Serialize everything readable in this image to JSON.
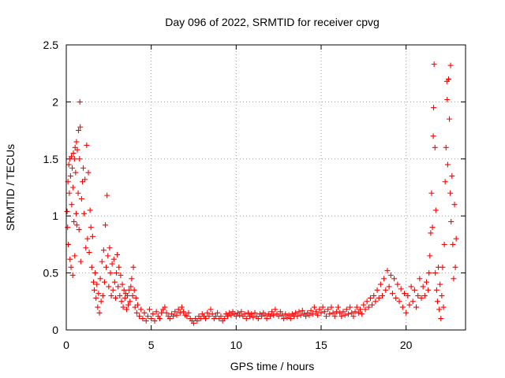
{
  "chart_data": {
    "type": "scatter",
    "title": "Day 096 of 2022, SRMTID for receiver cpvg",
    "xlabel": "GPS time / hours",
    "ylabel": "SRMTID / TECUs",
    "xlim": [
      0,
      23.5
    ],
    "ylim": [
      0,
      2.5
    ],
    "xticks": [
      0,
      5,
      10,
      15,
      20
    ],
    "xtick_labels": [
      "0",
      "5",
      "10",
      "15",
      "20"
    ],
    "yticks": [
      0,
      0.5,
      1,
      1.5,
      2,
      2.5
    ],
    "ytick_labels": [
      "0",
      "0.5",
      "1",
      "1.5",
      "2",
      "2.5"
    ],
    "grid": true,
    "marker": "+",
    "color": "#ff0000",
    "series": [
      {
        "name": "SRMTID",
        "points": [
          [
            0.05,
            1.04
          ],
          [
            0.08,
            0.9
          ],
          [
            0.1,
            1.3
          ],
          [
            0.12,
            0.75
          ],
          [
            0.15,
            1.45
          ],
          [
            0.18,
            1.2
          ],
          [
            0.2,
            1.5
          ],
          [
            0.22,
            0.62
          ],
          [
            0.25,
            1.35
          ],
          [
            0.28,
            0.55
          ],
          [
            0.3,
            1.52
          ],
          [
            0.32,
            1.1
          ],
          [
            0.35,
            1.42
          ],
          [
            0.38,
            0.48
          ],
          [
            0.4,
            1.25
          ],
          [
            0.42,
            1.55
          ],
          [
            0.45,
            0.95
          ],
          [
            0.48,
            1.5
          ],
          [
            0.5,
            0.65
          ],
          [
            0.52,
            1.6
          ],
          [
            0.55,
            1.38
          ],
          [
            0.58,
            1.02
          ],
          [
            0.6,
            1.65
          ],
          [
            0.62,
            0.92
          ],
          [
            0.65,
            1.58
          ],
          [
            0.7,
            1.2
          ],
          [
            0.72,
            1.75
          ],
          [
            0.75,
            0.88
          ],
          [
            0.78,
            1.5
          ],
          [
            0.8,
            2.0
          ],
          [
            0.82,
            1.78
          ],
          [
            0.85,
            0.6
          ],
          [
            0.9,
            1.15
          ],
          [
            0.95,
            1.3
          ],
          [
            1.0,
            1.42
          ],
          [
            1.05,
            1.02
          ],
          [
            1.1,
            1.32
          ],
          [
            1.15,
            0.72
          ],
          [
            1.2,
            1.62
          ],
          [
            1.25,
            0.8
          ],
          [
            1.3,
            1.38
          ],
          [
            1.35,
            0.68
          ],
          [
            1.4,
            1.05
          ],
          [
            1.45,
            0.9
          ],
          [
            1.5,
            0.55
          ],
          [
            1.55,
            0.82
          ],
          [
            1.6,
            0.42
          ],
          [
            1.65,
            0.35
          ],
          [
            1.7,
            0.5
          ],
          [
            1.75,
            0.28
          ],
          [
            1.8,
            0.4
          ],
          [
            1.85,
            0.2
          ],
          [
            1.9,
            0.32
          ],
          [
            1.95,
            0.15
          ],
          [
            2.0,
            0.45
          ],
          [
            2.05,
            0.25
          ],
          [
            2.1,
            0.6
          ],
          [
            2.15,
            0.3
          ],
          [
            2.2,
            0.7
          ],
          [
            2.25,
            0.42
          ],
          [
            2.3,
            0.92
          ],
          [
            2.35,
            0.55
          ],
          [
            2.4,
            1.18
          ],
          [
            2.45,
            0.65
          ],
          [
            2.5,
            0.38
          ],
          [
            2.55,
            0.72
          ],
          [
            2.6,
            0.5
          ],
          [
            2.65,
            0.3
          ],
          [
            2.7,
            0.58
          ],
          [
            2.75,
            0.35
          ],
          [
            2.8,
            0.62
          ],
          [
            2.85,
            0.42
          ],
          [
            2.9,
            0.28
          ],
          [
            2.95,
            0.5
          ],
          [
            3.0,
            0.66
          ],
          [
            3.05,
            0.38
          ],
          [
            3.1,
            0.55
          ],
          [
            3.15,
            0.3
          ],
          [
            3.2,
            0.48
          ],
          [
            3.25,
            0.25
          ],
          [
            3.3,
            0.4
          ],
          [
            3.35,
            0.2
          ],
          [
            3.4,
            0.35
          ],
          [
            3.45,
            0.28
          ],
          [
            3.5,
            0.32
          ],
          [
            3.55,
            0.18
          ],
          [
            3.6,
            0.3
          ],
          [
            3.65,
            0.22
          ],
          [
            3.7,
            0.35
          ],
          [
            3.75,
            0.25
          ],
          [
            3.8,
            0.38
          ],
          [
            3.85,
            0.45
          ],
          [
            3.9,
            0.3
          ],
          [
            3.95,
            0.55
          ],
          [
            4.0,
            0.35
          ],
          [
            4.05,
            0.2
          ],
          [
            4.1,
            0.28
          ],
          [
            4.15,
            0.15
          ],
          [
            4.2,
            0.22
          ],
          [
            4.3,
            0.12
          ],
          [
            4.4,
            0.18
          ],
          [
            4.5,
            0.1
          ],
          [
            4.6,
            0.15
          ],
          [
            4.7,
            0.08
          ],
          [
            4.8,
            0.12
          ],
          [
            4.9,
            0.18
          ],
          [
            5.0,
            0.1
          ],
          [
            5.1,
            0.14
          ],
          [
            5.2,
            0.08
          ],
          [
            5.3,
            0.16
          ],
          [
            5.4,
            0.12
          ],
          [
            5.5,
            0.1
          ],
          [
            5.6,
            0.15
          ],
          [
            5.7,
            0.18
          ],
          [
            5.8,
            0.2
          ],
          [
            5.9,
            0.15
          ],
          [
            6.0,
            0.12
          ],
          [
            6.1,
            0.1
          ],
          [
            6.2,
            0.14
          ],
          [
            6.3,
            0.12
          ],
          [
            6.4,
            0.16
          ],
          [
            6.5,
            0.13
          ],
          [
            6.6,
            0.18
          ],
          [
            6.7,
            0.15
          ],
          [
            6.8,
            0.2
          ],
          [
            6.9,
            0.16
          ],
          [
            7.0,
            0.13
          ],
          [
            7.1,
            0.12
          ],
          [
            7.2,
            0.15
          ],
          [
            7.3,
            0.1
          ],
          [
            7.4,
            0.08
          ],
          [
            7.5,
            0.06
          ],
          [
            7.6,
            0.1
          ],
          [
            7.7,
            0.08
          ],
          [
            7.8,
            0.12
          ],
          [
            7.9,
            0.1
          ],
          [
            8.0,
            0.14
          ],
          [
            8.1,
            0.12
          ],
          [
            8.2,
            0.1
          ],
          [
            8.3,
            0.15
          ],
          [
            8.4,
            0.12
          ],
          [
            8.5,
            0.18
          ],
          [
            8.6,
            0.14
          ],
          [
            8.7,
            0.1
          ],
          [
            8.8,
            0.12
          ],
          [
            8.9,
            0.15
          ],
          [
            9.0,
            0.1
          ],
          [
            9.1,
            0.12
          ],
          [
            9.2,
            0.08
          ],
          [
            9.3,
            0.1
          ],
          [
            9.4,
            0.14
          ],
          [
            9.5,
            0.12
          ],
          [
            9.6,
            0.15
          ],
          [
            9.7,
            0.13
          ],
          [
            9.8,
            0.16
          ],
          [
            9.9,
            0.14
          ],
          [
            10.0,
            0.12
          ],
          [
            10.1,
            0.15
          ],
          [
            10.2,
            0.13
          ],
          [
            10.3,
            0.16
          ],
          [
            10.4,
            0.12
          ],
          [
            10.5,
            0.14
          ],
          [
            10.6,
            0.1
          ],
          [
            10.7,
            0.15
          ],
          [
            10.8,
            0.12
          ],
          [
            10.9,
            0.14
          ],
          [
            11.0,
            0.11
          ],
          [
            11.1,
            0.15
          ],
          [
            11.2,
            0.12
          ],
          [
            11.3,
            0.1
          ],
          [
            11.4,
            0.14
          ],
          [
            11.5,
            0.12
          ],
          [
            11.6,
            0.15
          ],
          [
            11.7,
            0.13
          ],
          [
            11.8,
            0.1
          ],
          [
            11.9,
            0.14
          ],
          [
            12.0,
            0.12
          ],
          [
            12.1,
            0.16
          ],
          [
            12.2,
            0.13
          ],
          [
            12.3,
            0.18
          ],
          [
            12.4,
            0.14
          ],
          [
            12.5,
            0.12
          ],
          [
            12.6,
            0.16
          ],
          [
            12.7,
            0.13
          ],
          [
            12.8,
            0.1
          ],
          [
            12.9,
            0.14
          ],
          [
            13.0,
            0.11
          ],
          [
            13.1,
            0.13
          ],
          [
            13.2,
            0.1
          ],
          [
            13.3,
            0.14
          ],
          [
            13.4,
            0.12
          ],
          [
            13.5,
            0.15
          ],
          [
            13.6,
            0.12
          ],
          [
            13.7,
            0.16
          ],
          [
            13.8,
            0.13
          ],
          [
            13.9,
            0.17
          ],
          [
            14.0,
            0.14
          ],
          [
            14.1,
            0.12
          ],
          [
            14.2,
            0.15
          ],
          [
            14.3,
            0.13
          ],
          [
            14.4,
            0.17
          ],
          [
            14.5,
            0.14
          ],
          [
            14.6,
            0.2
          ],
          [
            14.7,
            0.16
          ],
          [
            14.8,
            0.13
          ],
          [
            14.9,
            0.18
          ],
          [
            15.0,
            0.15
          ],
          [
            15.1,
            0.2
          ],
          [
            15.2,
            0.16
          ],
          [
            15.3,
            0.12
          ],
          [
            15.4,
            0.18
          ],
          [
            15.5,
            0.14
          ],
          [
            15.6,
            0.2
          ],
          [
            15.7,
            0.15
          ],
          [
            15.8,
            0.12
          ],
          [
            15.9,
            0.16
          ],
          [
            16.0,
            0.2
          ],
          [
            16.1,
            0.15
          ],
          [
            16.2,
            0.12
          ],
          [
            16.3,
            0.16
          ],
          [
            16.4,
            0.13
          ],
          [
            16.5,
            0.18
          ],
          [
            16.6,
            0.14
          ],
          [
            16.7,
            0.2
          ],
          [
            16.8,
            0.15
          ],
          [
            16.9,
            0.12
          ],
          [
            17.0,
            0.16
          ],
          [
            17.1,
            0.2
          ],
          [
            17.2,
            0.15
          ],
          [
            17.3,
            0.18
          ],
          [
            17.4,
            0.14
          ],
          [
            17.5,
            0.22
          ],
          [
            17.6,
            0.18
          ],
          [
            17.7,
            0.25
          ],
          [
            17.8,
            0.2
          ],
          [
            17.9,
            0.28
          ],
          [
            18.0,
            0.22
          ],
          [
            18.1,
            0.3
          ],
          [
            18.2,
            0.25
          ],
          [
            18.3,
            0.35
          ],
          [
            18.4,
            0.28
          ],
          [
            18.5,
            0.4
          ],
          [
            18.6,
            0.3
          ],
          [
            18.7,
            0.45
          ],
          [
            18.8,
            0.35
          ],
          [
            18.9,
            0.52
          ],
          [
            19.0,
            0.38
          ],
          [
            19.1,
            0.48
          ],
          [
            19.2,
            0.32
          ],
          [
            19.3,
            0.45
          ],
          [
            19.4,
            0.28
          ],
          [
            19.5,
            0.4
          ],
          [
            19.6,
            0.25
          ],
          [
            19.7,
            0.36
          ],
          [
            19.8,
            0.2
          ],
          [
            19.9,
            0.32
          ],
          [
            20.0,
            0.15
          ],
          [
            20.1,
            0.3
          ],
          [
            20.2,
            0.22
          ],
          [
            20.3,
            0.38
          ],
          [
            20.4,
            0.25
          ],
          [
            20.5,
            0.35
          ],
          [
            20.6,
            0.2
          ],
          [
            20.7,
            0.3
          ],
          [
            20.8,
            0.45
          ],
          [
            20.9,
            0.28
          ],
          [
            21.0,
            0.38
          ],
          [
            21.1,
            0.3
          ],
          [
            21.2,
            0.42
          ],
          [
            21.3,
            0.35
          ],
          [
            21.35,
            0.5
          ],
          [
            21.4,
            0.65
          ],
          [
            21.45,
            0.85
          ],
          [
            21.5,
            1.2
          ],
          [
            21.55,
            0.9
          ],
          [
            21.6,
            1.7
          ],
          [
            21.62,
            1.95
          ],
          [
            21.65,
            2.33
          ],
          [
            21.7,
            1.6
          ],
          [
            21.72,
            0.5
          ],
          [
            21.75,
            1.05
          ],
          [
            21.8,
            0.35
          ],
          [
            21.85,
            0.25
          ],
          [
            21.9,
            0.55
          ],
          [
            21.95,
            0.18
          ],
          [
            22.0,
            0.4
          ],
          [
            22.05,
            0.1
          ],
          [
            22.1,
            0.3
          ],
          [
            22.15,
            0.55
          ],
          [
            22.2,
            0.2
          ],
          [
            22.25,
            0.75
          ],
          [
            22.3,
            1.3
          ],
          [
            22.35,
            1.6
          ],
          [
            22.4,
            2.18
          ],
          [
            22.42,
            2.02
          ],
          [
            22.45,
            1.45
          ],
          [
            22.5,
            2.2
          ],
          [
            22.55,
            1.85
          ],
          [
            22.6,
            1.2
          ],
          [
            22.62,
            2.32
          ],
          [
            22.65,
            0.95
          ],
          [
            22.7,
            1.35
          ],
          [
            22.75,
            0.75
          ],
          [
            22.8,
            0.45
          ],
          [
            22.85,
            1.1
          ],
          [
            22.9,
            0.55
          ],
          [
            22.95,
            0.8
          ]
        ]
      }
    ]
  }
}
